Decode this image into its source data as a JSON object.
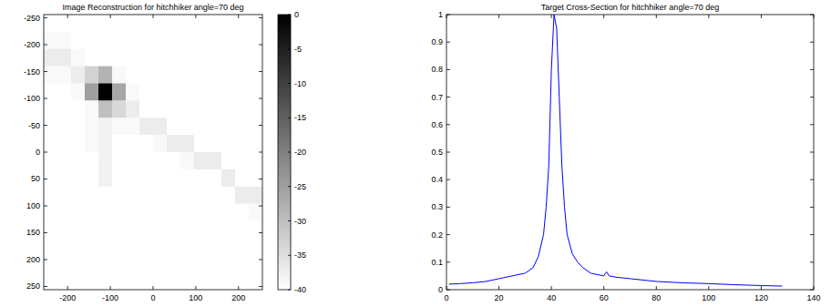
{
  "chart_data": [
    {
      "type": "heatmap",
      "title": "Image Reconstruction for hitchhiker angle=70 deg",
      "xlim": [
        -256,
        256
      ],
      "ylim": [
        256,
        -256
      ],
      "xticks": [
        -200,
        -100,
        0,
        100,
        200
      ],
      "yticks": [
        -250,
        -200,
        -150,
        -100,
        -50,
        0,
        50,
        100,
        150,
        200,
        250
      ],
      "clim": [
        -40,
        0
      ],
      "cticks": [
        0,
        -5,
        -10,
        -15,
        -20,
        -25,
        -30,
        -35,
        -40
      ],
      "cells": [
        [
          -40,
          -40,
          -40,
          -40,
          -40,
          -40,
          -40,
          -40,
          -40,
          -40,
          -40,
          -40,
          -40,
          -40,
          -40,
          -40
        ],
        [
          -39,
          -39,
          -40,
          -40,
          -40,
          -40,
          -40,
          -40,
          -40,
          -40,
          -40,
          -40,
          -40,
          -40,
          -40,
          -40
        ],
        [
          -37,
          -37,
          -39,
          -40,
          -40,
          -40,
          -40,
          -40,
          -40,
          -40,
          -40,
          -40,
          -40,
          -40,
          -40,
          -40
        ],
        [
          -39,
          -39,
          -37,
          -33,
          -28,
          -39,
          -40,
          -40,
          -40,
          -40,
          -40,
          -40,
          -40,
          -40,
          -40,
          -40
        ],
        [
          -40,
          -40,
          -39,
          -25,
          0,
          -26,
          -39,
          -40,
          -40,
          -40,
          -40,
          -40,
          -40,
          -40,
          -40,
          -40
        ],
        [
          -40,
          -40,
          -40,
          -39,
          -30,
          -34,
          -37,
          -40,
          -40,
          -40,
          -40,
          -40,
          -40,
          -40,
          -40,
          -40
        ],
        [
          -40,
          -40,
          -40,
          -39,
          -38,
          -39,
          -39,
          -37,
          -37,
          -40,
          -40,
          -40,
          -40,
          -40,
          -40,
          -40
        ],
        [
          -40,
          -40,
          -40,
          -39,
          -38,
          -40,
          -40,
          -40,
          -39,
          -37,
          -37,
          -40,
          -40,
          -40,
          -40,
          -40
        ],
        [
          -40,
          -40,
          -40,
          -40,
          -38,
          -40,
          -40,
          -40,
          -40,
          -40,
          -39,
          -37,
          -37,
          -40,
          -40,
          -40
        ],
        [
          -40,
          -40,
          -40,
          -40,
          -38,
          -40,
          -40,
          -40,
          -40,
          -40,
          -40,
          -40,
          -40,
          -37,
          -40,
          -40
        ],
        [
          -40,
          -40,
          -40,
          -40,
          -40,
          -40,
          -40,
          -40,
          -40,
          -40,
          -40,
          -40,
          -40,
          -40,
          -37,
          -37
        ],
        [
          -40,
          -40,
          -40,
          -40,
          -40,
          -40,
          -40,
          -40,
          -40,
          -40,
          -40,
          -40,
          -40,
          -40,
          -40,
          -39
        ],
        [
          -40,
          -40,
          -40,
          -40,
          -40,
          -40,
          -40,
          -40,
          -40,
          -40,
          -40,
          -40,
          -40,
          -40,
          -40,
          -40
        ],
        [
          -40,
          -40,
          -40,
          -40,
          -40,
          -40,
          -40,
          -40,
          -40,
          -40,
          -40,
          -40,
          -40,
          -40,
          -40,
          -40
        ],
        [
          -40,
          -40,
          -40,
          -40,
          -40,
          -40,
          -40,
          -40,
          -40,
          -40,
          -40,
          -40,
          -40,
          -40,
          -40,
          -40
        ],
        [
          -40,
          -40,
          -40,
          -40,
          -40,
          -40,
          -40,
          -40,
          -40,
          -40,
          -40,
          -40,
          -40,
          -40,
          -40,
          -40
        ]
      ]
    },
    {
      "type": "line",
      "title": "Target Cross-Section for hitchhiker angle=70 deg",
      "color": "#0000ff",
      "x": [
        1,
        5,
        10,
        15,
        20,
        25,
        30,
        33,
        35,
        37,
        38,
        39,
        40,
        41,
        42,
        43,
        44,
        45,
        46,
        48,
        50,
        52,
        55,
        60,
        61,
        62,
        65,
        70,
        75,
        80,
        90,
        100,
        110,
        120,
        128
      ],
      "values": [
        0.02,
        0.022,
        0.025,
        0.03,
        0.04,
        0.05,
        0.06,
        0.08,
        0.12,
        0.2,
        0.3,
        0.45,
        0.8,
        1.0,
        0.95,
        0.7,
        0.45,
        0.3,
        0.2,
        0.13,
        0.1,
        0.08,
        0.06,
        0.05,
        0.065,
        0.05,
        0.045,
        0.04,
        0.035,
        0.03,
        0.025,
        0.022,
        0.018,
        0.015,
        0.013
      ],
      "xlim": [
        0,
        140
      ],
      "ylim": [
        0,
        1
      ],
      "xticks": [
        0,
        20,
        40,
        60,
        80,
        100,
        120,
        140
      ],
      "yticks": [
        0,
        0.1,
        0.2,
        0.3,
        0.4,
        0.5,
        0.6,
        0.7,
        0.8,
        0.9,
        1
      ]
    }
  ]
}
